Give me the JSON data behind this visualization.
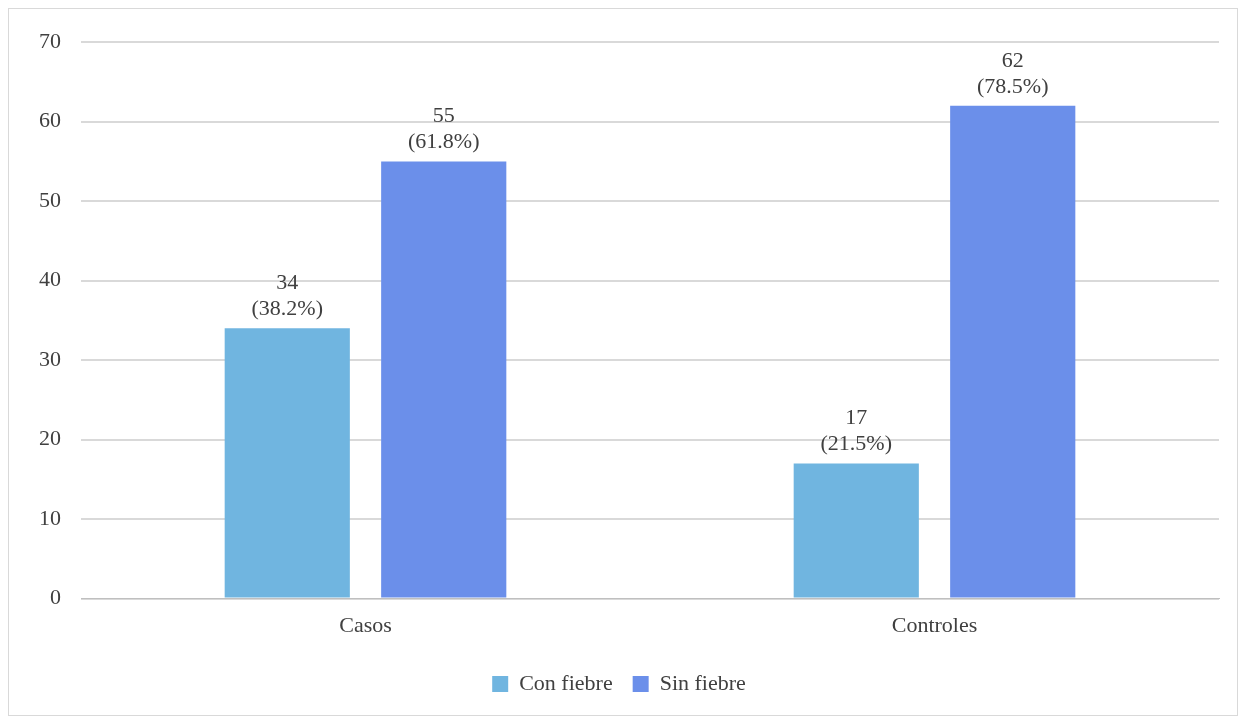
{
  "chart_data": {
    "type": "bar",
    "categories": [
      "Casos",
      "Controles"
    ],
    "series": [
      {
        "name": "Con fiebre",
        "color": "#70b5e0",
        "values": [
          34,
          17
        ],
        "value_labels": [
          "34\n(38.2%)",
          "17\n(21.5%)"
        ]
      },
      {
        "name": "Sin fiebre",
        "color": "#6b8fea",
        "values": [
          55,
          62
        ],
        "value_labels": [
          "55\n(61.8%)",
          "62\n(78.5%)"
        ]
      }
    ],
    "ylim": [
      0,
      70
    ],
    "yticks": [
      0,
      10,
      20,
      30,
      40,
      50,
      60,
      70
    ],
    "grid": "y",
    "legend": "bottom"
  }
}
